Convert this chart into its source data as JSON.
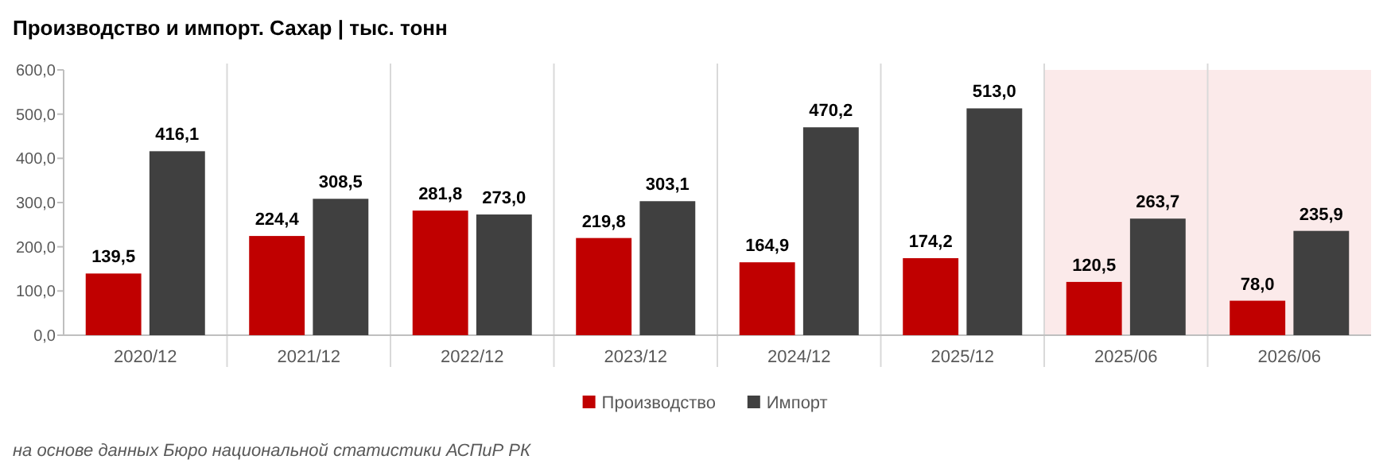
{
  "chart_data": {
    "type": "bar",
    "title": "Производство и импорт. Сахар | тыс. тонн",
    "categories": [
      "2020/12",
      "2021/12",
      "2022/12",
      "2023/12",
      "2024/12",
      "2025/12",
      "2025/06",
      "2026/06"
    ],
    "series": [
      {
        "name": "Производство",
        "color": "#c00000",
        "values": [
          139.5,
          224.4,
          281.8,
          219.8,
          164.9,
          174.2,
          120.5,
          78.0
        ],
        "value_labels": [
          "139,5",
          "224,4",
          "281,8",
          "219,8",
          "164,9",
          "174,2",
          "120,5",
          "78,0"
        ]
      },
      {
        "name": "Импорт",
        "color": "#404040",
        "values": [
          416.1,
          308.5,
          273.0,
          303.1,
          470.2,
          513.0,
          263.7,
          235.9
        ],
        "value_labels": [
          "416,1",
          "308,5",
          "273,0",
          "303,1",
          "470,2",
          "513,0",
          "263,7",
          "235,9"
        ]
      }
    ],
    "ylim": [
      0,
      600
    ],
    "yticks": [
      {
        "value": 0,
        "label": "0,0"
      },
      {
        "value": 100,
        "label": "100,0"
      },
      {
        "value": 200,
        "label": "200,0"
      },
      {
        "value": 300,
        "label": "300,0"
      },
      {
        "value": 400,
        "label": "400,0"
      },
      {
        "value": 500,
        "label": "500,0"
      },
      {
        "value": 600,
        "label": "600,0"
      }
    ],
    "bands": [
      {
        "axis": "x",
        "from": "2025/06",
        "to": "2026/06",
        "color": "#fbeaea"
      }
    ],
    "grid": "x",
    "legend": "bottom",
    "annotations": [
      "на основе данных Бюро национальной статистики АСПиР РК"
    ]
  }
}
